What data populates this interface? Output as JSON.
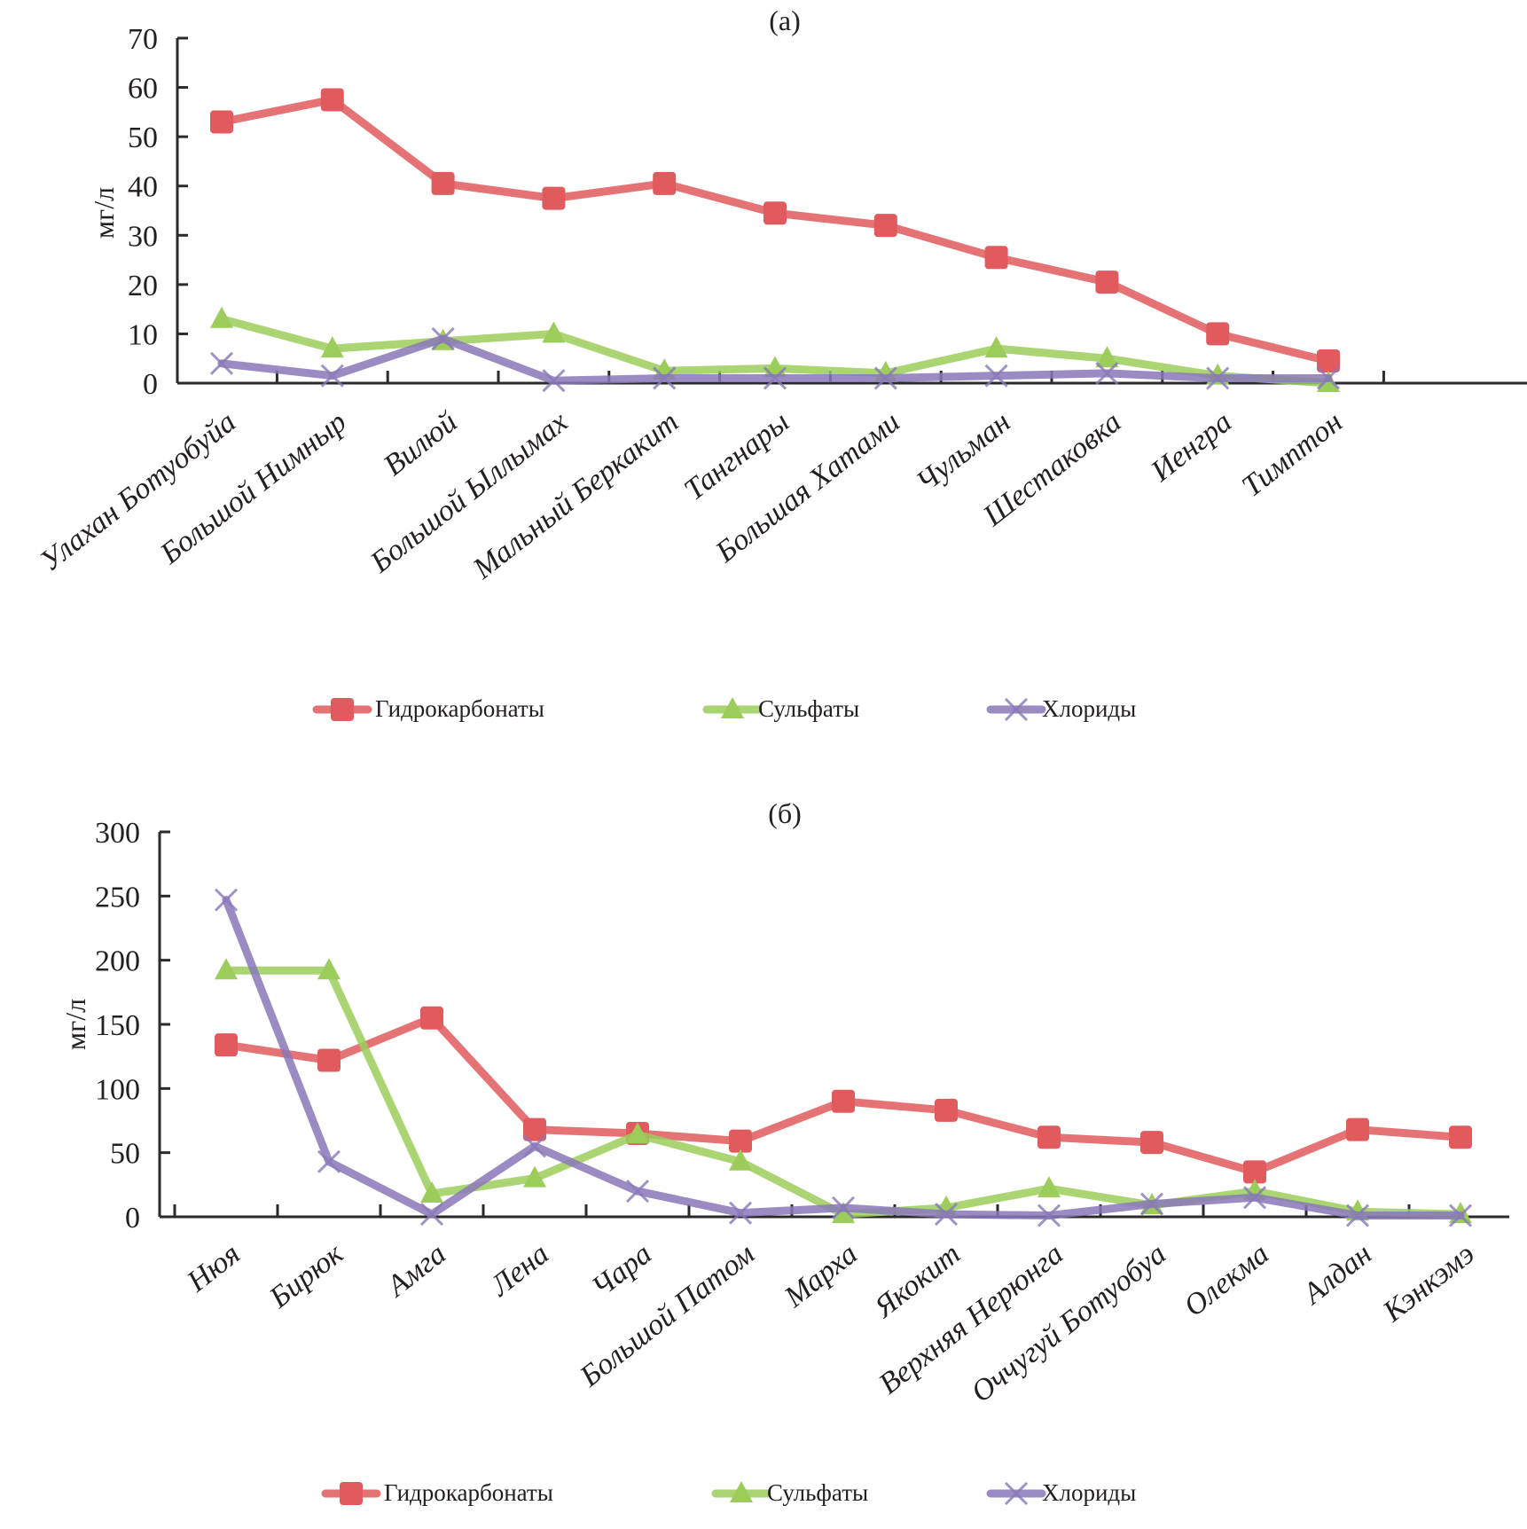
{
  "chart_data": [
    {
      "type": "line",
      "title": "(a)",
      "xlabel": "",
      "ylabel": "мг/л",
      "ylim": [
        0,
        70
      ],
      "yticks": [
        0,
        10,
        20,
        30,
        40,
        50,
        60,
        70
      ],
      "grid": false,
      "legend": "bottom",
      "categories": [
        "Улахан Ботуобуйа",
        "Большой Нимныр",
        "Вилюй",
        "Большой Ыллымах",
        "Мальный Беркакит",
        "Тангнары",
        "Большая Хатами",
        "Чульман",
        "Шестаковка",
        "Иенгра",
        "Тимптон"
      ],
      "series": [
        {
          "name": "Гидрокарбонаты",
          "color": "#e05a5e",
          "marker": "square",
          "values": [
            53,
            57.5,
            40.5,
            37.5,
            40.5,
            34.5,
            32,
            25.5,
            20.5,
            10,
            4.5
          ]
        },
        {
          "name": "Сульфаты",
          "color": "#9ccc5a",
          "marker": "triangle",
          "values": [
            13,
            7,
            8.5,
            10,
            2.5,
            3,
            2,
            7,
            5,
            1.5,
            0
          ]
        },
        {
          "name": "Хлориды",
          "color": "#8878b8",
          "marker": "x",
          "values": [
            4,
            1.5,
            9,
            0.5,
            1,
            1,
            1,
            1.5,
            2,
            1,
            1
          ]
        }
      ]
    },
    {
      "type": "line",
      "title": "(б)",
      "xlabel": "",
      "ylabel": "мг/л",
      "ylim": [
        0,
        300
      ],
      "yticks": [
        0,
        50,
        100,
        150,
        200,
        250,
        300
      ],
      "grid": false,
      "legend": "bottom",
      "categories": [
        "Нюя",
        "Бирюк",
        "Амга",
        "Лена",
        "Чара",
        "Большой Патом",
        "Марха",
        "Якокит",
        "Верхняя Нерюнга",
        "Оччугуй Ботуобуа",
        "Олекма",
        "Алдан",
        "Кэнкэмэ"
      ],
      "series": [
        {
          "name": "Гидрокарбонаты",
          "color": "#e05a5e",
          "marker": "square",
          "values": [
            134,
            122,
            155,
            68,
            65,
            59,
            90,
            83,
            62,
            58,
            35,
            68,
            62
          ]
        },
        {
          "name": "Сульфаты",
          "color": "#9ccc5a",
          "marker": "triangle",
          "values": [
            192,
            192,
            18,
            30,
            64,
            43,
            2,
            7,
            22,
            9,
            20,
            4,
            2
          ]
        },
        {
          "name": "Хлориды",
          "color": "#8878b8",
          "marker": "x",
          "values": [
            247,
            43,
            2,
            55,
            20,
            3,
            7,
            2,
            1,
            10,
            15,
            1,
            1
          ]
        }
      ]
    }
  ]
}
